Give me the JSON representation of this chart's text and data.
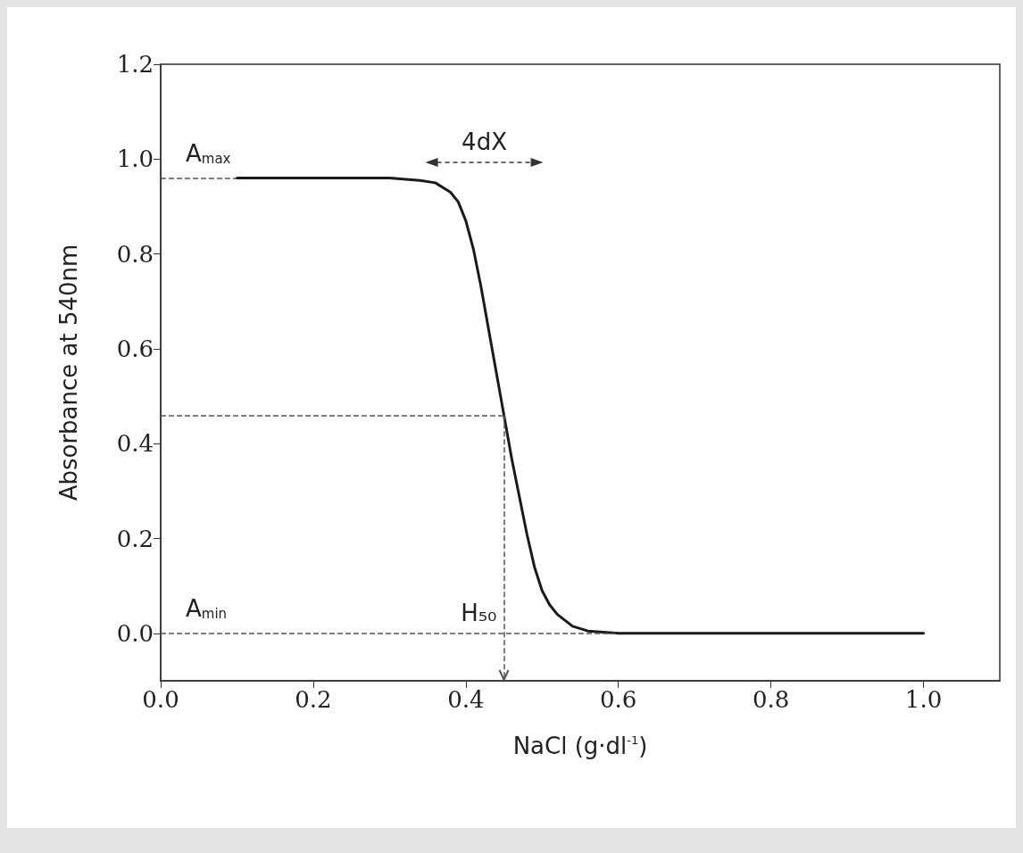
{
  "chart_data": {
    "type": "line",
    "xlabel": "NaCl (g·dl$^{-1}$)",
    "ylabel": "Absorbance at 540nm",
    "x": [
      0.1,
      0.2,
      0.3,
      0.34,
      0.36,
      0.38,
      0.39,
      0.4,
      0.41,
      0.42,
      0.43,
      0.44,
      0.45,
      0.46,
      0.47,
      0.48,
      0.49,
      0.5,
      0.51,
      0.52,
      0.54,
      0.56,
      0.6,
      0.7,
      0.8,
      0.9,
      1.0
    ],
    "series": [
      {
        "color": "#1a1a1a",
        "values": [
          0.96,
          0.96,
          0.96,
          0.955,
          0.95,
          0.93,
          0.91,
          0.87,
          0.81,
          0.73,
          0.64,
          0.55,
          0.46,
          0.37,
          0.29,
          0.21,
          0.14,
          0.09,
          0.06,
          0.04,
          0.015,
          0.005,
          0,
          0,
          0,
          0,
          0
        ]
      }
    ],
    "xlim": [
      0,
      1.1
    ],
    "xticks": [
      {
        "value": 0,
        "label": "0.0"
      },
      {
        "value": 0.2,
        "label": "0.2"
      },
      {
        "value": 0.4,
        "label": "0.4"
      },
      {
        "value": 0.6,
        "label": "0.6"
      },
      {
        "value": 0.8,
        "label": "0.8"
      },
      {
        "value": 1.0,
        "label": "1.0"
      }
    ],
    "ylim": [
      -0.1,
      1.2
    ],
    "yticks": [
      {
        "value": 0,
        "label": "0.0"
      },
      0.2,
      0.4,
      0.6,
      0.8,
      {
        "value": 1.0,
        "label": "1.0"
      },
      1.2
    ],
    "ref_lines": [
      {
        "axis": "y",
        "value": 0.96,
        "label": "A$_{max}$",
        "line_style": "dashed",
        "color": "#555555"
      },
      {
        "axis": "y",
        "value": 0.46,
        "line_style": "dashed",
        "color": "#555555"
      },
      {
        "axis": "y",
        "value": 0,
        "label": "A$_{min}$",
        "line_style": "dashed",
        "color": "#555555"
      },
      {
        "axis": "x",
        "value": 0.45,
        "label": "H₅₀",
        "line_style": "dashed",
        "color": "#555555"
      }
    ],
    "annotations": [
      "4dX"
    ],
    "grid": false,
    "marker": "none",
    "line_style": "solid"
  }
}
